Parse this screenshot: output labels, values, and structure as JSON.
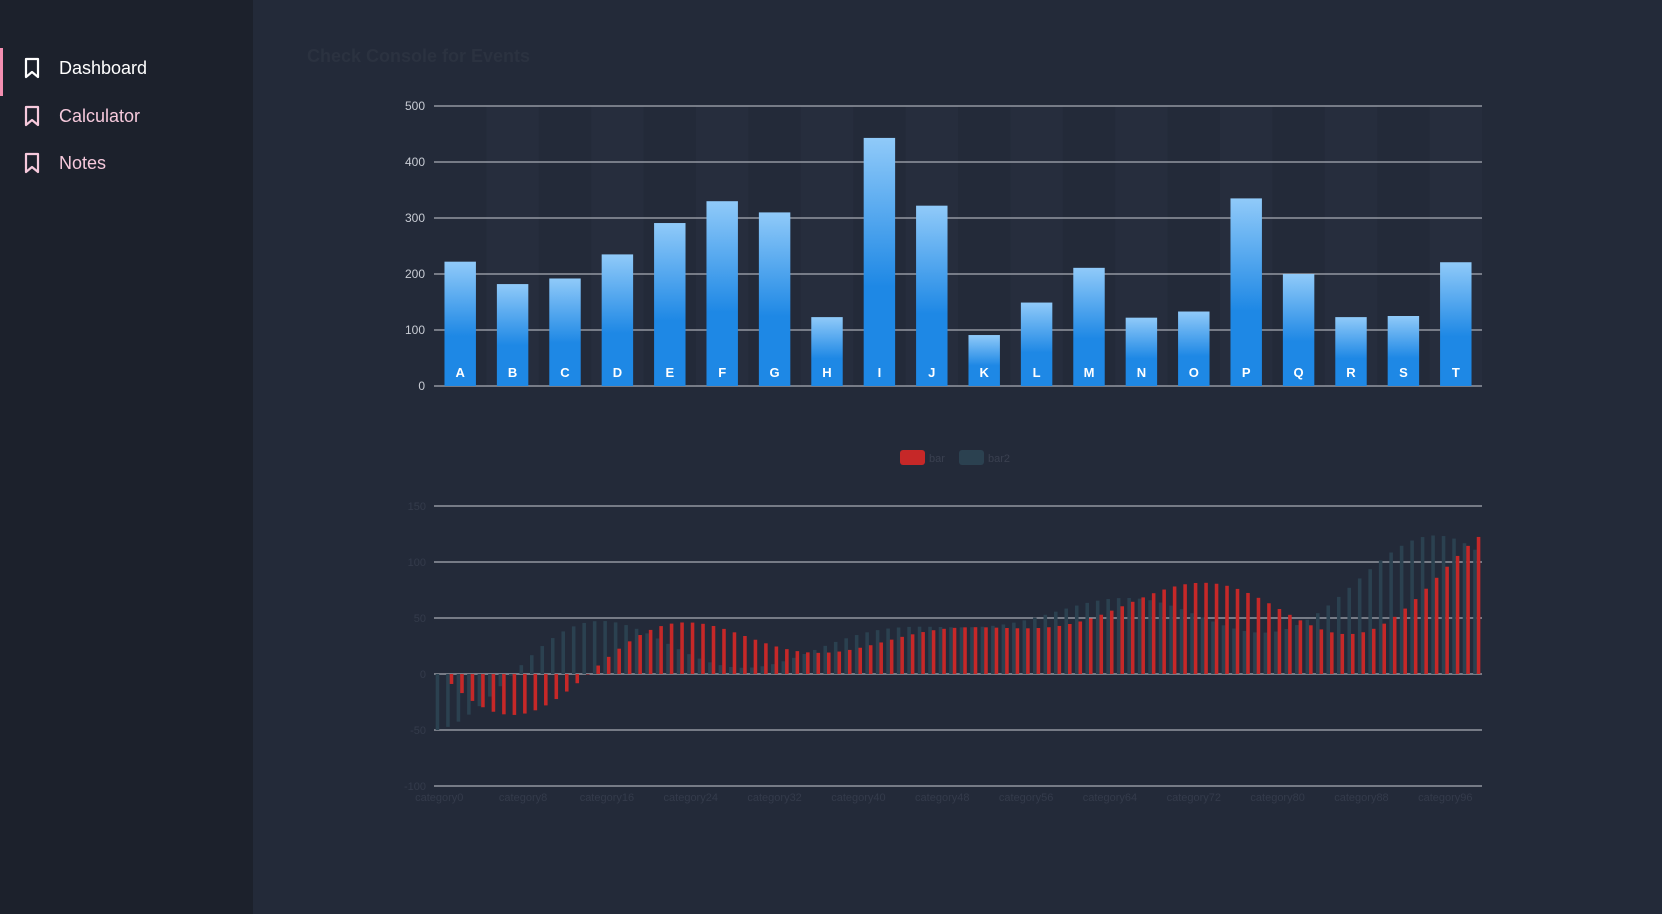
{
  "sidebar": {
    "items": [
      {
        "label": "Dashboard",
        "icon": "bookmark-icon",
        "active": true
      },
      {
        "label": "Calculator",
        "icon": "bookmark-icon",
        "active": false
      },
      {
        "label": "Notes",
        "icon": "bookmark-icon",
        "active": false
      }
    ]
  },
  "page": {
    "title": "Check Console for Events"
  },
  "colors": {
    "background": "#232a39",
    "sidebar": "#1c212c",
    "active_indicator": "#f48fb1",
    "bar_top": "#90caf9",
    "bar_bottom": "#1e88e5",
    "bar1": "#c62828",
    "bar2": "#2b4150"
  },
  "chart_data": [
    {
      "type": "bar",
      "categories": [
        "A",
        "B",
        "C",
        "D",
        "E",
        "F",
        "G",
        "H",
        "I",
        "J",
        "K",
        "L",
        "M",
        "N",
        "O",
        "P",
        "Q",
        "R",
        "S",
        "T"
      ],
      "values": [
        222,
        182,
        192,
        235,
        291,
        330,
        310,
        123,
        443,
        322,
        91,
        149,
        211,
        122,
        133,
        335,
        200,
        123,
        125,
        221
      ],
      "ylim": [
        0,
        500
      ],
      "yticks": [
        0,
        100,
        200,
        300,
        400,
        500
      ],
      "grid": true,
      "title": "",
      "xlabel": "",
      "ylabel": ""
    },
    {
      "type": "bar",
      "legend": {
        "position": "top-center",
        "entries": [
          "bar",
          "bar2"
        ]
      },
      "ylim": [
        -100,
        150
      ],
      "yticks": [
        -100,
        -50,
        0,
        50,
        100,
        150
      ],
      "ytick_labels": [
        "-100",
        "-50",
        "0",
        "50",
        "100",
        "150"
      ],
      "x_tick_labels": [
        "category0",
        "category8",
        "category16",
        "category24",
        "category32",
        "category40",
        "category48",
        "category56",
        "category64",
        "category72",
        "category80",
        "category88",
        "category96"
      ],
      "category_count": 100,
      "series": [
        {
          "name": "bar",
          "formula": "(sin(i/5)*(i/5-10)+i/6)*5"
        },
        {
          "name": "bar2",
          "formula": "(cos(i/5)*(i/5-10)+i/6)*5"
        }
      ],
      "grid": true,
      "title": "",
      "xlabel": "",
      "ylabel": ""
    }
  ]
}
